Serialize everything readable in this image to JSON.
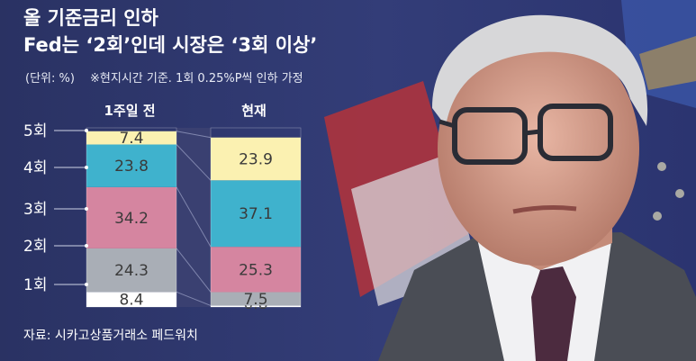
{
  "headline": {
    "line1": "올 기준금리 인하",
    "line2": "Fed는 ‘2회’인데 시장은 ‘3회 이상’"
  },
  "source": "자료: 시카고상품거래소 페드워치",
  "chart_data": {
    "type": "bar",
    "stacked": true,
    "unit_label": "(단위: %)",
    "note": "※현지시간 기준. 1회 0.25%P씩 인하 가정",
    "categories": [
      "1회",
      "2회",
      "3회",
      "4회",
      "5회"
    ],
    "series": [
      {
        "name": "1주일 전",
        "values": [
          8.4,
          24.3,
          34.2,
          23.8,
          7.4
        ]
      },
      {
        "name": "현재",
        "values": [
          0.8,
          7.5,
          25.3,
          37.1,
          23.9
        ]
      }
    ],
    "colors": {
      "1회": "#ffffff",
      "2회": "#a9aeb6",
      "3회": "#d585a0",
      "4회": "#3fb2cd",
      "5회": "#fbf1b1"
    },
    "ylim": [
      0,
      100
    ]
  }
}
